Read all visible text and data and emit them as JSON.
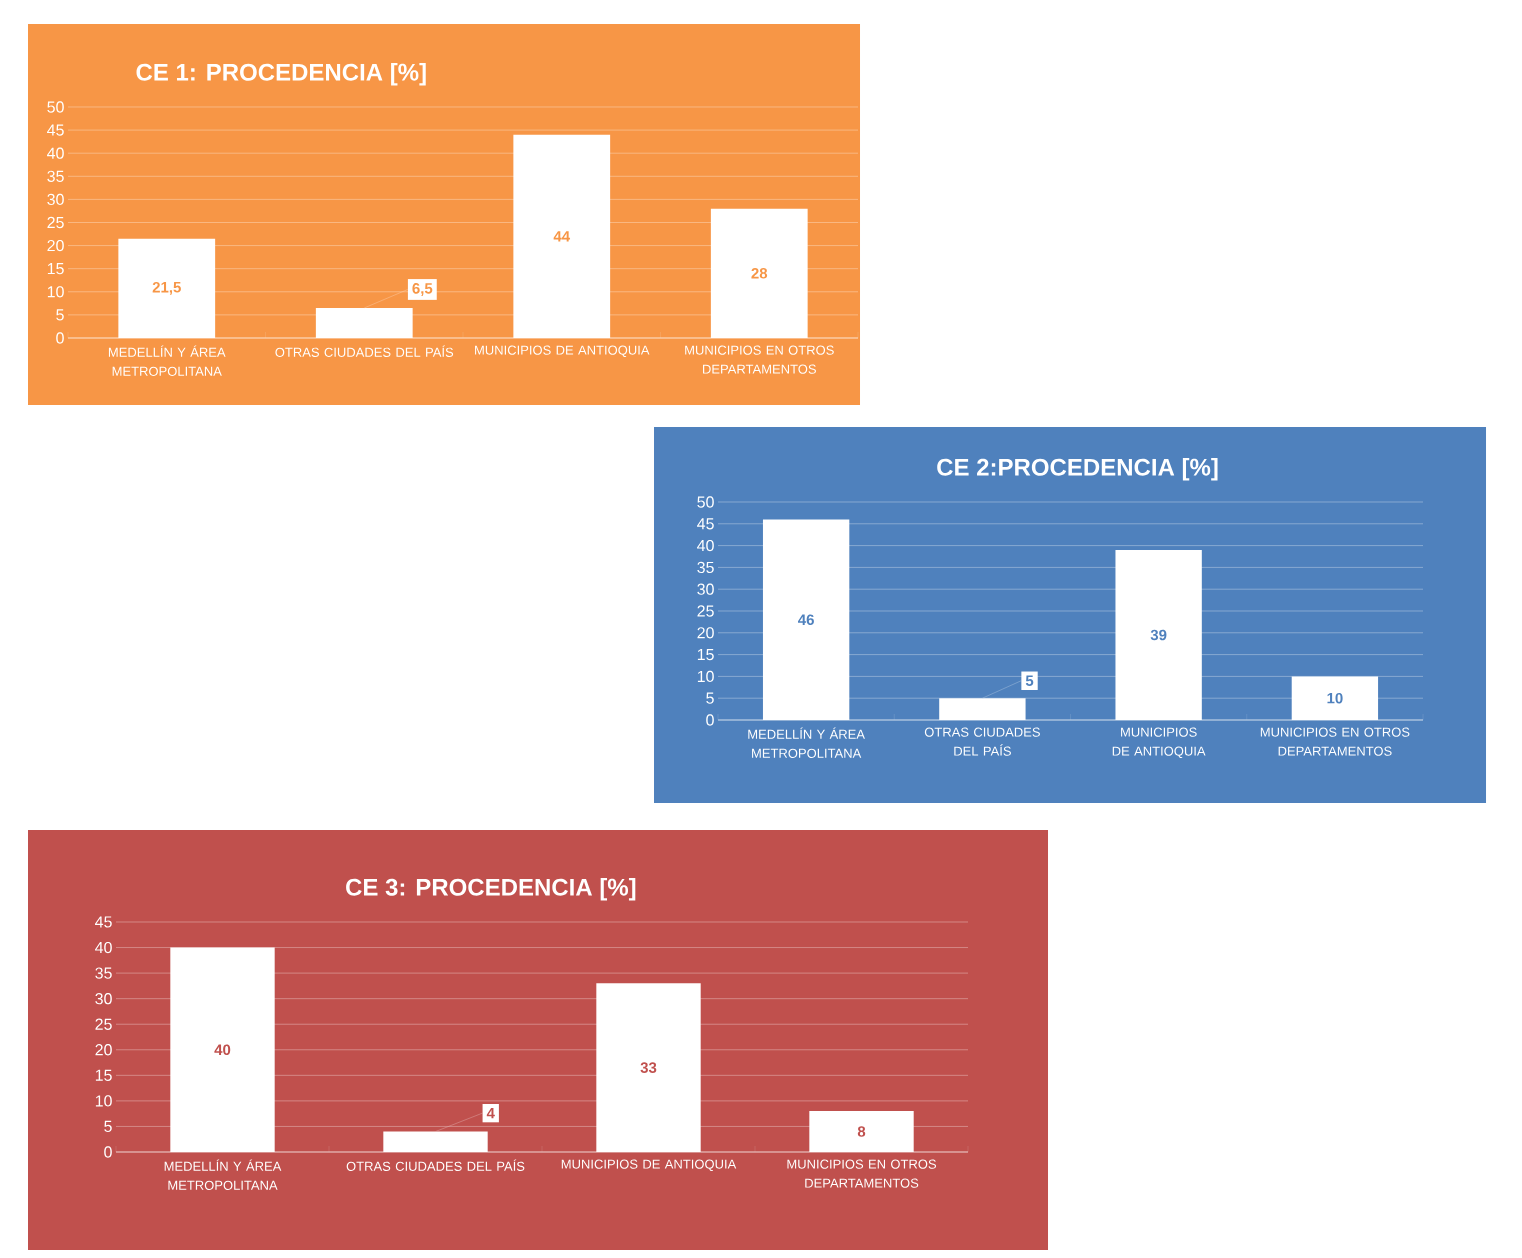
{
  "chart_data": [
    {
      "type": "bar",
      "title": "CE 1: PROCEDENCIA  [%]",
      "categories": [
        "MEDELLÍN Y ÁREA METROPOLITANA",
        "OTRAS CIUDADES DEL PAÍS",
        "MUNICIPIOS DE ANTIOQUIA",
        "MUNICIPIOS EN OTROS DEPARTAMENTOS"
      ],
      "values": [
        21.5,
        6.5,
        44,
        28
      ],
      "value_labels": [
        "21,5",
        "6,5",
        "44",
        "28"
      ],
      "color": "#ffffff",
      "ylim": [
        0,
        50
      ],
      "yticks": [
        0,
        5,
        10,
        15,
        20,
        25,
        30,
        35,
        40,
        45,
        50
      ],
      "grid": "y"
    },
    {
      "type": "bar",
      "title": "CE 2:PROCEDENCIA  [%]",
      "categories": [
        "MEDELLÍN Y ÁREA METROPOLITANA",
        "OTRAS CIUDADES DEL PAÍS",
        "MUNICIPIOS DE ANTIOQUIA",
        "MUNICIPIOS EN OTROS DEPARTAMENTOS"
      ],
      "values": [
        46,
        5,
        39,
        10
      ],
      "value_labels": [
        "46",
        "5",
        "39",
        "10"
      ],
      "color": "#ffffff",
      "ylim": [
        0,
        50
      ],
      "yticks": [
        0,
        5,
        10,
        15,
        20,
        25,
        30,
        35,
        40,
        45,
        50
      ],
      "grid": "y"
    },
    {
      "type": "bar",
      "title": "CE 3: PROCEDENCIA  [%]",
      "categories": [
        "MEDELLÍN Y ÁREA METROPOLITANA",
        "OTRAS CIUDADES DEL PAÍS",
        "MUNICIPIOS DE ANTIOQUIA",
        "MUNICIPIOS EN OTROS DEPARTAMENTOS"
      ],
      "values": [
        40,
        4,
        33,
        8
      ],
      "value_labels": [
        "40",
        "4",
        "33",
        "8"
      ],
      "color": "#ffffff",
      "ylim": [
        0,
        45
      ],
      "yticks": [
        0,
        5,
        10,
        15,
        20,
        25,
        30,
        35,
        40,
        45
      ],
      "grid": "y"
    }
  ]
}
